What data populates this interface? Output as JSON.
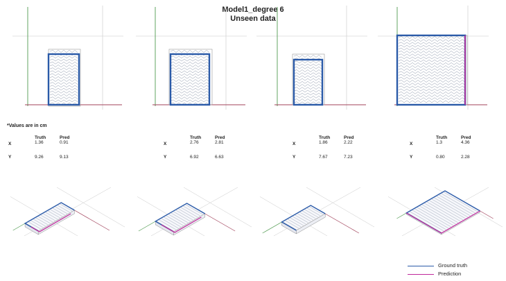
{
  "title_line1": "Model1_degree 6",
  "title_line2": "Unseen data",
  "note": "*Values are in cm",
  "headers": {
    "truth": "Truth",
    "pred": "Pred"
  },
  "row_labels": {
    "x": "X",
    "y": "Y"
  },
  "panels": [
    {
      "truth_x": "1.36",
      "pred_x": "0.91",
      "truth_y": "9.26",
      "pred_y": "9.13"
    },
    {
      "truth_x": "2.76",
      "pred_x": "2.81",
      "truth_y": "6.92",
      "pred_y": "6.63"
    },
    {
      "truth_x": "1.86",
      "pred_x": "2.22",
      "truth_y": "7.67",
      "pred_y": "7.23"
    },
    {
      "truth_x": "1.3",
      "pred_x": "4.36",
      "truth_y": "0.80",
      "pred_y": "2.28"
    }
  ],
  "legend": {
    "ground_truth": "Ground truth",
    "prediction": "Prediction"
  },
  "colors": {
    "ground_truth": "#2a5aa8",
    "prediction": "#c0289a",
    "y_axis": "#4f9a4f",
    "x_axis": "#a0405a",
    "grid": "#c8c8c8",
    "pattern": "#7a869c"
  }
}
